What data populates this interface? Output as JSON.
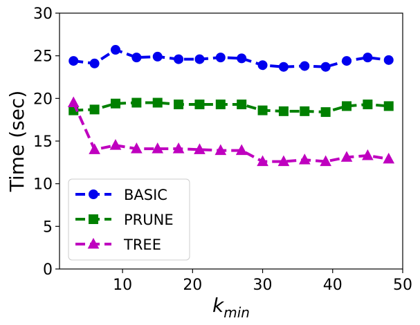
{
  "chart_data": {
    "type": "line",
    "title": "",
    "xlabel": "k",
    "xlabel_subscript": "min",
    "ylabel": "Time (sec)",
    "xlim": [
      1,
      50
    ],
    "ylim": [
      0,
      30
    ],
    "xticks": [
      10,
      20,
      30,
      40,
      50
    ],
    "yticks": [
      0,
      5,
      10,
      15,
      20,
      25,
      30
    ],
    "x": [
      3,
      6,
      9,
      12,
      15,
      18,
      21,
      24,
      27,
      30,
      33,
      36,
      39,
      42,
      45,
      48
    ],
    "series": [
      {
        "name": "BASIC",
        "color": "#0000ee",
        "marker": "circle",
        "values": [
          24.4,
          24.1,
          25.7,
          24.8,
          24.9,
          24.6,
          24.6,
          24.8,
          24.7,
          23.9,
          23.7,
          23.8,
          23.7,
          24.4,
          24.8,
          24.5
        ]
      },
      {
        "name": "PRUNE",
        "color": "#008000",
        "marker": "square",
        "values": [
          18.6,
          18.7,
          19.4,
          19.5,
          19.5,
          19.3,
          19.3,
          19.3,
          19.3,
          18.6,
          18.5,
          18.5,
          18.4,
          19.1,
          19.3,
          19.1
        ]
      },
      {
        "name": "TREE",
        "color": "#bf00bf",
        "marker": "triangle",
        "values": [
          19.5,
          14.0,
          14.5,
          14.1,
          14.1,
          14.1,
          14.0,
          13.9,
          13.9,
          12.6,
          12.6,
          12.8,
          12.6,
          13.1,
          13.3,
          12.9
        ]
      }
    ],
    "legend": "bottom-left",
    "grid": false
  }
}
